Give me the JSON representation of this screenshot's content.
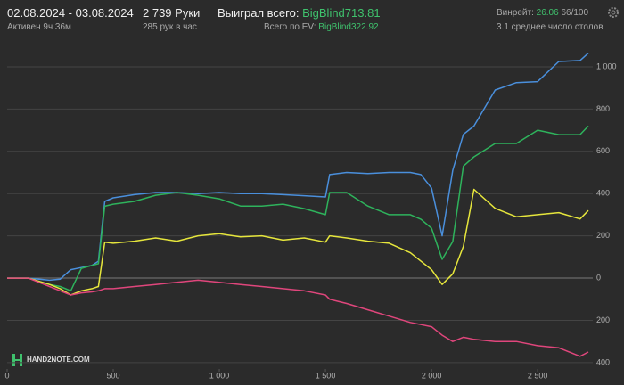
{
  "header": {
    "date_range": "02.08.2024 - 03.08.2024",
    "active": "Активен 9ч 36м",
    "hands": "2 739 Руки",
    "hands_per_hour": "285 рук в час",
    "won_label": "Выиграл всего:",
    "won_value": "BigBlind713.81",
    "ev_label": "Всего по EV:",
    "ev_value": "BigBlind322.92",
    "winrate_label": "Винрейт:",
    "winrate_value": "26.06",
    "winrate_scale": "66/100",
    "tables": "3.1 среднее число столов"
  },
  "logo": "HAND2NOTE.COM",
  "chart_data": {
    "type": "line",
    "x": [
      0,
      100,
      200,
      250,
      300,
      350,
      400,
      430,
      460,
      500,
      600,
      700,
      800,
      900,
      1000,
      1100,
      1200,
      1300,
      1400,
      1500,
      1520,
      1600,
      1700,
      1800,
      1900,
      1950,
      2000,
      2050,
      2100,
      2150,
      2200,
      2300,
      2400,
      2500,
      2600,
      2700,
      2739
    ],
    "series": [
      {
        "color": "#4a8fdc",
        "values": [
          0,
          0,
          -10,
          -5,
          40,
          50,
          60,
          80,
          363,
          380,
          395,
          405,
          405,
          400,
          405,
          400,
          400,
          395,
          390,
          384,
          490,
          500,
          495,
          500,
          500,
          490,
          426,
          200,
          510,
          680,
          720,
          890,
          925,
          930,
          1025,
          1030,
          1065
        ]
      },
      {
        "color": "#2eb35c",
        "values": [
          0,
          0,
          -30,
          -40,
          -60,
          46,
          60,
          68,
          340,
          350,
          363,
          392,
          405,
          392,
          375,
          341,
          341,
          350,
          329,
          300,
          405,
          405,
          341,
          300,
          300,
          278,
          236,
          89,
          173,
          530,
          574,
          637,
          637,
          700,
          679,
          679,
          720
        ]
      },
      {
        "color": "#e6e63c",
        "values": [
          0,
          0,
          -30,
          -50,
          -80,
          -60,
          -50,
          -40,
          170,
          165,
          175,
          190,
          175,
          200,
          210,
          195,
          200,
          180,
          190,
          170,
          200,
          190,
          175,
          165,
          120,
          80,
          40,
          -30,
          20,
          150,
          420,
          330,
          290,
          300,
          310,
          280,
          320
        ]
      },
      {
        "color": "#e0467c",
        "values": [
          0,
          0,
          -40,
          -60,
          -80,
          -70,
          -65,
          -60,
          -50,
          -50,
          -40,
          -30,
          -20,
          -10,
          -20,
          -30,
          -40,
          -50,
          -60,
          -80,
          -100,
          -120,
          -150,
          -180,
          -210,
          -220,
          -230,
          -270,
          -300,
          -280,
          -290,
          -300,
          -300,
          -320,
          -330,
          -370,
          -350
        ]
      }
    ],
    "xlim": [
      0,
      2760
    ],
    "xticks": [
      0,
      500,
      {
        "value": 1000,
        "label": "1 000"
      },
      {
        "value": 1500,
        "label": "1 500"
      },
      {
        "value": 2000,
        "label": "2 000"
      },
      {
        "value": 2500,
        "label": "2 500"
      }
    ],
    "ylim": [
      -430,
      1080
    ],
    "yticks": [
      {
        "value": -400,
        "label": "400"
      },
      {
        "value": -200,
        "label": "200"
      },
      0,
      200,
      400,
      600,
      800,
      {
        "value": 1000,
        "label": "1 000"
      }
    ],
    "grid": true
  }
}
